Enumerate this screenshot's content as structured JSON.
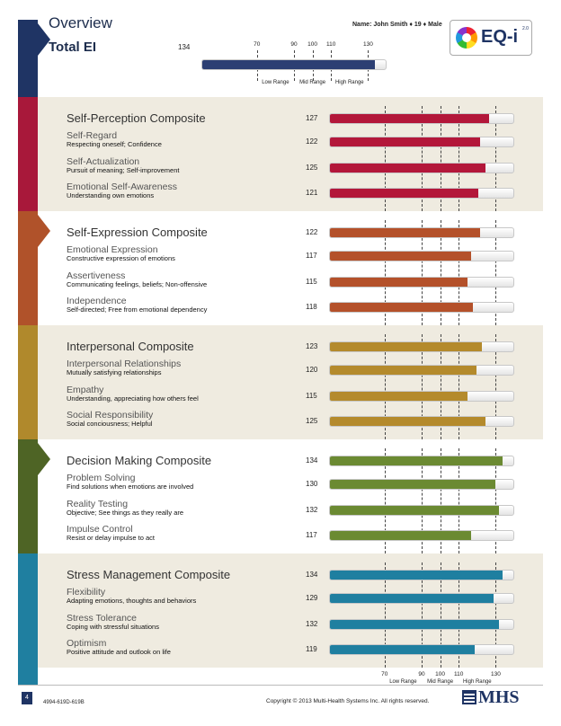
{
  "header": {
    "title": "Overview",
    "total_label": "Total EI",
    "total_score": "134",
    "total_value": 134,
    "name_line": "Name: John Smith ♦ 19 ♦ Male",
    "logo": {
      "text": "EQ-i",
      "version": "2.0"
    }
  },
  "scale": {
    "ticks": [
      "70",
      "90",
      "100",
      "110",
      "130"
    ],
    "tick_values": [
      70,
      90,
      100,
      110,
      130
    ],
    "ranges": [
      "Low Range",
      "Mid Range",
      "High Range"
    ],
    "min": 40,
    "max": 140
  },
  "sections": [
    {
      "name": "Self-Perception Composite",
      "score": "127",
      "value": 127,
      "color": "#b3173a",
      "subscales": [
        {
          "name": "Self-Regard",
          "desc": "Respecting oneself; Confidence",
          "score": "122",
          "value": 122
        },
        {
          "name": "Self-Actualization",
          "desc": "Pursuit of meaning; Self-improvement",
          "score": "125",
          "value": 125
        },
        {
          "name": "Emotional Self-Awareness",
          "desc": "Understanding own emotions",
          "score": "121",
          "value": 121
        }
      ]
    },
    {
      "name": "Self-Expression Composite",
      "score": "122",
      "value": 122,
      "color": "#b4512a",
      "subscales": [
        {
          "name": "Emotional Expression",
          "desc": "Constructive expression of emotions",
          "score": "117",
          "value": 117
        },
        {
          "name": "Assertiveness",
          "desc": "Communicating feelings, beliefs; Non-offensive",
          "score": "115",
          "value": 115
        },
        {
          "name": "Independence",
          "desc": "Self-directed; Free from emotional dependency",
          "score": "118",
          "value": 118
        }
      ]
    },
    {
      "name": "Interpersonal Composite",
      "score": "123",
      "value": 123,
      "color": "#b48a2c",
      "subscales": [
        {
          "name": "Interpersonal Relationships",
          "desc": "Mutually satisfying relationships",
          "score": "120",
          "value": 120
        },
        {
          "name": "Empathy",
          "desc": "Understanding, appreciating how others feel",
          "score": "115",
          "value": 115
        },
        {
          "name": "Social Responsibility",
          "desc": "Social conciousness; Helpful",
          "score": "125",
          "value": 125
        }
      ]
    },
    {
      "name": "Decision Making Composite",
      "score": "134",
      "value": 134,
      "color": "#6b8a32",
      "subscales": [
        {
          "name": "Problem Solving",
          "desc": "Find solutions when emotions are involved",
          "score": "130",
          "value": 130
        },
        {
          "name": "Reality Testing",
          "desc": "Objective; See things as they really are",
          "score": "132",
          "value": 132
        },
        {
          "name": "Impulse Control",
          "desc": "Resist or delay impulse to act",
          "score": "117",
          "value": 117
        }
      ]
    },
    {
      "name": "Stress Management Composite",
      "score": "134",
      "value": 134,
      "color": "#1f7fa0",
      "subscales": [
        {
          "name": "Flexibility",
          "desc": "Adapting emotions, thoughts and behaviors",
          "score": "129",
          "value": 129
        },
        {
          "name": "Stress Tolerance",
          "desc": "Coping with stressful situations",
          "score": "132",
          "value": 132
        },
        {
          "name": "Optimism",
          "desc": "Positive attitude and outlook on life",
          "score": "119",
          "value": 119
        }
      ]
    }
  ],
  "rail_colors": [
    "#1f3464",
    "#a8183a",
    "#b0522a",
    "#b0892c",
    "#4e6425",
    "#1f7fa0"
  ],
  "total_bar_color": "#2c3f73",
  "footer": {
    "page": "4",
    "code": "4994-619D-619B",
    "copyright": "Copyright © 2013 Multi-Health Systems Inc. All rights reserved.",
    "mhs": "MHS"
  }
}
